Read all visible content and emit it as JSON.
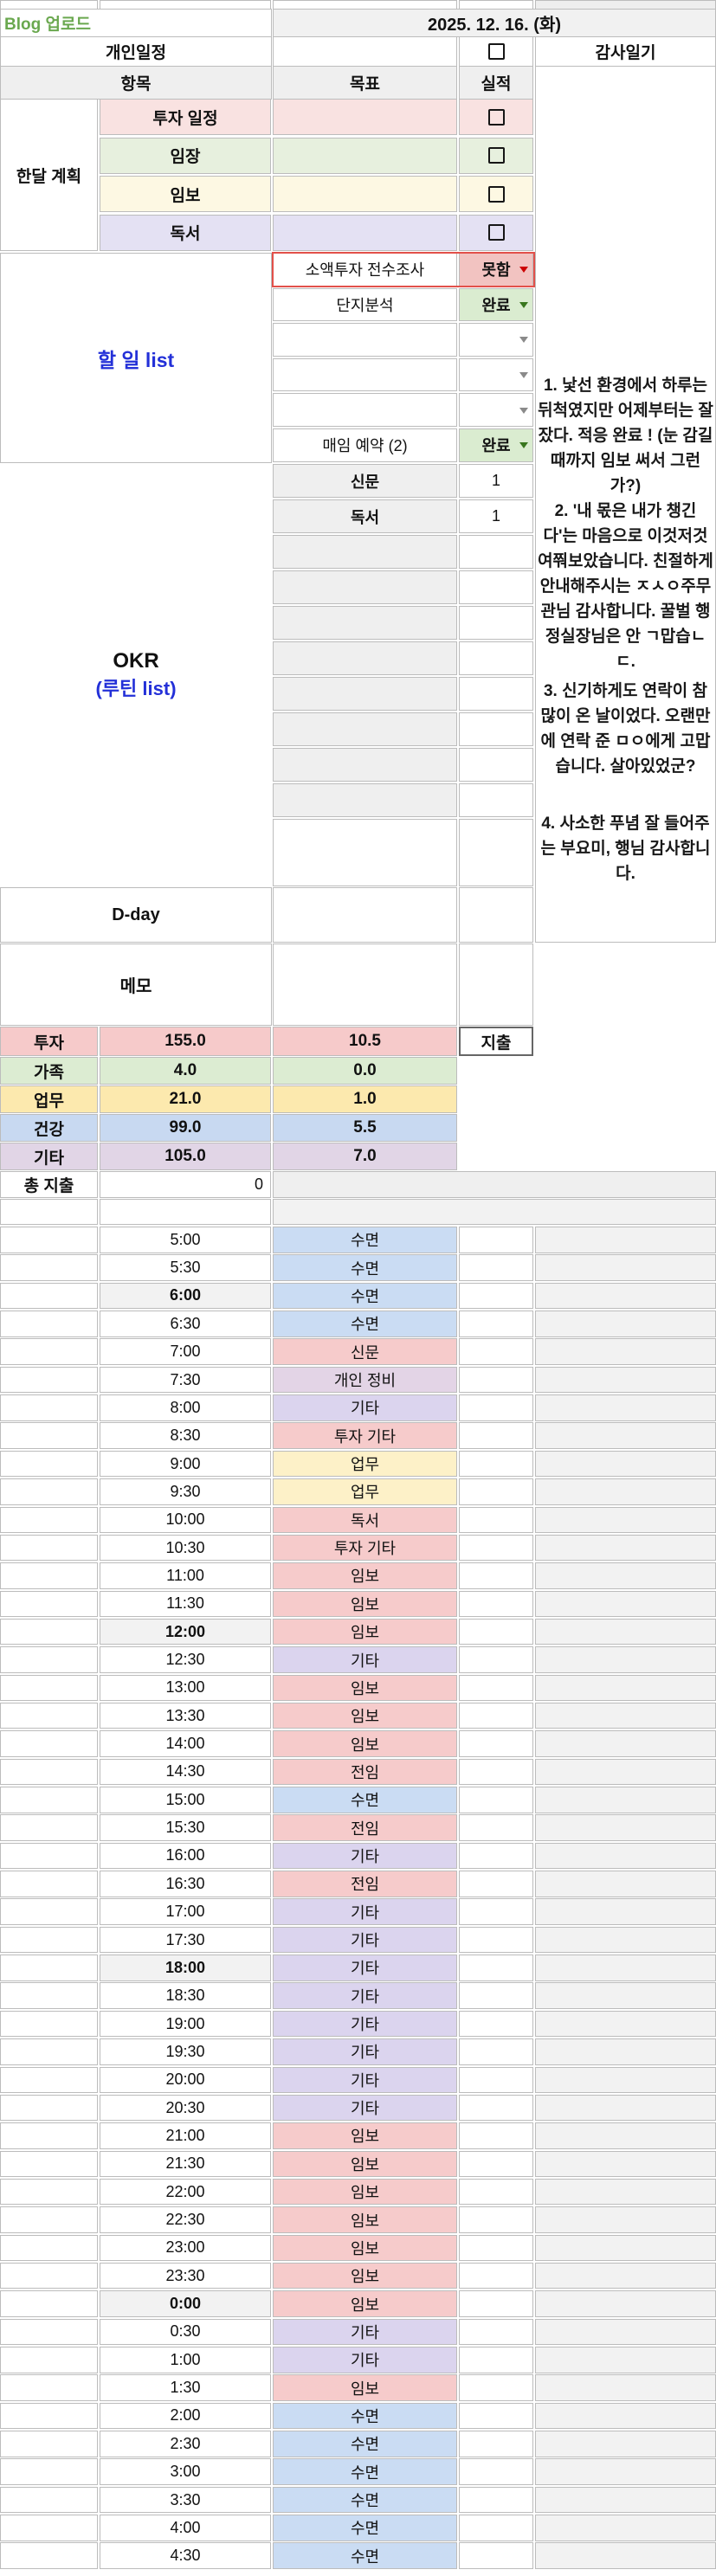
{
  "top": {
    "blog_label": "Blog 업로드",
    "date": "2025. 12. 16. (화)",
    "personal_schedule": "개인일정",
    "gratitude_diary": "감사일기"
  },
  "table_headers": {
    "item": "항목",
    "goal": "목표",
    "result": "실적"
  },
  "monthly_plan": {
    "title": "한달 계획",
    "rows": [
      {
        "label": "투자 일정",
        "color": "#f9e2e1",
        "checked": false
      },
      {
        "label": "임장",
        "color": "#e7f0de",
        "checked": false
      },
      {
        "label": "임보",
        "color": "#fdf8e3",
        "checked": false
      },
      {
        "label": "독서",
        "color": "#e4e1f3",
        "checked": false
      }
    ]
  },
  "todo": {
    "title": "할 일 list",
    "rows": [
      {
        "label": "소액투자 전수조사",
        "status": "못함",
        "type": "fail",
        "selected": true
      },
      {
        "label": "단지분석",
        "status": "완료",
        "type": "done",
        "selected": false
      },
      {
        "label": "",
        "status": "",
        "type": "empty",
        "selected": false
      },
      {
        "label": "",
        "status": "",
        "type": "empty",
        "selected": false
      },
      {
        "label": "",
        "status": "",
        "type": "empty",
        "selected": false
      },
      {
        "label": "매임 예약 (2)",
        "status": "완료",
        "type": "done",
        "selected": false
      }
    ]
  },
  "okr": {
    "title_main": "OKR",
    "title_sub": "(루틴 list)",
    "rows": [
      {
        "label": "신문",
        "value": "1"
      },
      {
        "label": "독서",
        "value": "1"
      },
      {
        "label": "",
        "value": ""
      },
      {
        "label": "",
        "value": ""
      },
      {
        "label": "",
        "value": ""
      },
      {
        "label": "",
        "value": ""
      },
      {
        "label": "",
        "value": ""
      },
      {
        "label": "",
        "value": ""
      },
      {
        "label": "",
        "value": ""
      },
      {
        "label": "",
        "value": ""
      }
    ]
  },
  "diary_entries": [
    "1. 낯선 환경에서 하루는 뒤척였지만 어제부터는 잘 잤다. 적응 완료 ! (눈 감길 때까지 임보 써서 그런가?)",
    "2. '내 몫은 내가 챙긴다'는 마음으로 이것저것 여쭤보았습니다. 친절하게 안내해주시는 ㅈㅅㅇ주무관님 감사합니다. 꿀벌 행정실장님은 안 ㄱ맙습ㄴㄷ.",
    "3. 신기하게도 연락이 참 많이 온 날이었다. 오랜만에 연락 준 ㅁㅇ에게 고맙습니다. 살아있었군?",
    "4. 사소한 푸념 잘 들어주는 부요미, 행님 감사합니다."
  ],
  "dday_label": "D-day",
  "memo_label": "메모",
  "stats": {
    "expense_header": "지출",
    "total_label": "총 지출",
    "total_value": "0",
    "rows": [
      {
        "label": "투자",
        "goal": "155.0",
        "actual": "10.5",
        "color": "#f6caca"
      },
      {
        "label": "가족",
        "goal": "4.0",
        "actual": "0.0",
        "color": "#dcecd2"
      },
      {
        "label": "업무",
        "goal": "21.0",
        "actual": "1.0",
        "color": "#fce9ae"
      },
      {
        "label": "건강",
        "goal": "99.0",
        "actual": "5.5",
        "color": "#c8d9f1"
      },
      {
        "label": "기타",
        "goal": "105.0",
        "actual": "7.0",
        "color": "#e1d5e6"
      }
    ]
  },
  "timeline": [
    {
      "time": "5:00",
      "activity": "수면",
      "cat": "blue",
      "marker": false
    },
    {
      "time": "5:30",
      "activity": "수면",
      "cat": "blue",
      "marker": false
    },
    {
      "time": "6:00",
      "activity": "수면",
      "cat": "blue",
      "marker": true
    },
    {
      "time": "6:30",
      "activity": "수면",
      "cat": "blue",
      "marker": false
    },
    {
      "time": "7:00",
      "activity": "신문",
      "cat": "pink",
      "marker": false
    },
    {
      "time": "7:30",
      "activity": "개인 정비",
      "cat": "personal",
      "marker": false
    },
    {
      "time": "8:00",
      "activity": "기타",
      "cat": "purple",
      "marker": false
    },
    {
      "time": "8:30",
      "activity": "투자 기타",
      "cat": "pink",
      "marker": false
    },
    {
      "time": "9:00",
      "activity": "업무",
      "cat": "yellow",
      "marker": false
    },
    {
      "time": "9:30",
      "activity": "업무",
      "cat": "yellow",
      "marker": false
    },
    {
      "time": "10:00",
      "activity": "독서",
      "cat": "pink",
      "marker": false
    },
    {
      "time": "10:30",
      "activity": "투자 기타",
      "cat": "pink",
      "marker": false
    },
    {
      "time": "11:00",
      "activity": "임보",
      "cat": "pink",
      "marker": false
    },
    {
      "time": "11:30",
      "activity": "임보",
      "cat": "pink",
      "marker": false
    },
    {
      "time": "12:00",
      "activity": "임보",
      "cat": "pink",
      "marker": true
    },
    {
      "time": "12:30",
      "activity": "기타",
      "cat": "purple",
      "marker": false
    },
    {
      "time": "13:00",
      "activity": "임보",
      "cat": "pink",
      "marker": false
    },
    {
      "time": "13:30",
      "activity": "임보",
      "cat": "pink",
      "marker": false
    },
    {
      "time": "14:00",
      "activity": "임보",
      "cat": "pink",
      "marker": false
    },
    {
      "time": "14:30",
      "activity": "전임",
      "cat": "pink",
      "marker": false
    },
    {
      "time": "15:00",
      "activity": "수면",
      "cat": "blue",
      "marker": false
    },
    {
      "time": "15:30",
      "activity": "전임",
      "cat": "pink",
      "marker": false
    },
    {
      "time": "16:00",
      "activity": "기타",
      "cat": "purple",
      "marker": false
    },
    {
      "time": "16:30",
      "activity": "전임",
      "cat": "pink",
      "marker": false
    },
    {
      "time": "17:00",
      "activity": "기타",
      "cat": "purple",
      "marker": false
    },
    {
      "time": "17:30",
      "activity": "기타",
      "cat": "purple",
      "marker": false
    },
    {
      "time": "18:00",
      "activity": "기타",
      "cat": "purple",
      "marker": true
    },
    {
      "time": "18:30",
      "activity": "기타",
      "cat": "purple",
      "marker": false
    },
    {
      "time": "19:00",
      "activity": "기타",
      "cat": "purple",
      "marker": false
    },
    {
      "time": "19:30",
      "activity": "기타",
      "cat": "purple",
      "marker": false
    },
    {
      "time": "20:00",
      "activity": "기타",
      "cat": "purple",
      "marker": false
    },
    {
      "time": "20:30",
      "activity": "기타",
      "cat": "purple",
      "marker": false
    },
    {
      "time": "21:00",
      "activity": "임보",
      "cat": "pink",
      "marker": false
    },
    {
      "time": "21:30",
      "activity": "임보",
      "cat": "pink",
      "marker": false
    },
    {
      "time": "22:00",
      "activity": "임보",
      "cat": "pink",
      "marker": false
    },
    {
      "time": "22:30",
      "activity": "임보",
      "cat": "pink",
      "marker": false
    },
    {
      "time": "23:00",
      "activity": "임보",
      "cat": "pink",
      "marker": false
    },
    {
      "time": "23:30",
      "activity": "임보",
      "cat": "pink",
      "marker": false
    },
    {
      "time": "0:00",
      "activity": "임보",
      "cat": "pink",
      "marker": true
    },
    {
      "time": "0:30",
      "activity": "기타",
      "cat": "purple",
      "marker": false
    },
    {
      "time": "1:00",
      "activity": "기타",
      "cat": "purple",
      "marker": false
    },
    {
      "time": "1:30",
      "activity": "임보",
      "cat": "pink",
      "marker": false
    },
    {
      "time": "2:00",
      "activity": "수면",
      "cat": "blue",
      "marker": false
    },
    {
      "time": "2:30",
      "activity": "수면",
      "cat": "blue",
      "marker": false
    },
    {
      "time": "3:00",
      "activity": "수면",
      "cat": "blue",
      "marker": false
    },
    {
      "time": "3:30",
      "activity": "수면",
      "cat": "blue",
      "marker": false
    },
    {
      "time": "4:00",
      "activity": "수면",
      "cat": "blue",
      "marker": false
    },
    {
      "time": "4:30",
      "activity": "수면",
      "cat": "blue",
      "marker": false
    }
  ],
  "palette": {
    "blue": "#cadcf3",
    "pink": "#f6cbcb",
    "purple": "#dbd4ee",
    "personal": "#e3d4e6",
    "yellow": "#fdf1c8",
    "fail_bg": "#f2c3c1",
    "done_bg": "#daecd0",
    "fail_arrow": "#cc0000",
    "done_arrow": "#38761d",
    "empty_arrow": "#8a8a8a",
    "gray_header": "#efefef",
    "gray_light": "#f2f2f2",
    "date_bar": "#f1f1f1",
    "accent_blue": "#2330d8",
    "green_text": "#6aa84f",
    "red_border": "#e2504a"
  }
}
